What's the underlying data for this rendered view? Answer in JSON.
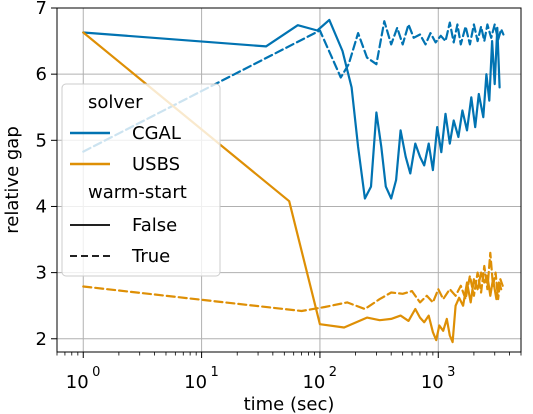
{
  "chart_data": {
    "type": "line",
    "xscale": "log",
    "xlabel": "time (sec)",
    "ylabel": "relative gap",
    "xlim": [
      0.6,
      5000
    ],
    "ylim": [
      1.8,
      7.0
    ],
    "grid": true,
    "x_ticks": [
      {
        "value": 1,
        "base": "10",
        "exp": "0"
      },
      {
        "value": 10,
        "base": "10",
        "exp": "1"
      },
      {
        "value": 100,
        "base": "10",
        "exp": "2"
      },
      {
        "value": 1000,
        "base": "10",
        "exp": "3"
      }
    ],
    "y_ticks": [
      2,
      3,
      4,
      5,
      6,
      7
    ],
    "legend": {
      "position": "center-left",
      "hue_title": "solver",
      "style_title": "warm-start",
      "hue_entries": [
        "CGAL",
        "USBS"
      ],
      "style_entries": [
        "False",
        "True"
      ]
    },
    "colors": {
      "CGAL": "#0173b2",
      "USBS": "#de8f05"
    },
    "series": [
      {
        "solver": "CGAL",
        "warm_start": "False",
        "points": [
          [
            1,
            6.63
          ],
          [
            35,
            6.42
          ],
          [
            65,
            6.74
          ],
          [
            95,
            6.66
          ],
          [
            120,
            6.82
          ],
          [
            155,
            6.35
          ],
          [
            185,
            5.8
          ],
          [
            210,
            4.9
          ],
          [
            240,
            4.12
          ],
          [
            270,
            4.3
          ],
          [
            300,
            5.42
          ],
          [
            330,
            4.9
          ],
          [
            360,
            4.3
          ],
          [
            400,
            4.12
          ],
          [
            440,
            4.4
          ],
          [
            480,
            5.15
          ],
          [
            530,
            4.75
          ],
          [
            580,
            4.5
          ],
          [
            640,
            4.95
          ],
          [
            700,
            4.75
          ],
          [
            760,
            4.62
          ],
          [
            830,
            4.95
          ],
          [
            900,
            4.55
          ],
          [
            980,
            5.2
          ],
          [
            1060,
            4.82
          ],
          [
            1150,
            5.4
          ],
          [
            1250,
            4.95
          ],
          [
            1350,
            5.3
          ],
          [
            1480,
            5.05
          ],
          [
            1600,
            5.45
          ],
          [
            1750,
            5.15
          ],
          [
            1900,
            5.65
          ],
          [
            2050,
            5.2
          ],
          [
            2200,
            5.7
          ],
          [
            2400,
            5.35
          ],
          [
            2550,
            6.0
          ],
          [
            2700,
            5.6
          ],
          [
            2850,
            6.5
          ],
          [
            3000,
            5.85
          ],
          [
            3150,
            6.7
          ],
          [
            3300,
            5.8
          ]
        ]
      },
      {
        "solver": "CGAL",
        "warm_start": "True",
        "points": [
          [
            1,
            4.83
          ],
          [
            100,
            6.66
          ],
          [
            150,
            5.95
          ],
          [
            175,
            6.15
          ],
          [
            210,
            6.62
          ],
          [
            250,
            6.25
          ],
          [
            300,
            6.15
          ],
          [
            350,
            6.8
          ],
          [
            400,
            6.45
          ],
          [
            450,
            6.7
          ],
          [
            500,
            6.45
          ],
          [
            560,
            6.75
          ],
          [
            620,
            6.55
          ],
          [
            700,
            6.6
          ],
          [
            780,
            6.45
          ],
          [
            860,
            6.62
          ],
          [
            950,
            6.48
          ],
          [
            1050,
            6.58
          ],
          [
            1150,
            6.5
          ],
          [
            1250,
            6.78
          ],
          [
            1350,
            6.48
          ],
          [
            1450,
            6.75
          ],
          [
            1550,
            6.45
          ],
          [
            1700,
            6.72
          ],
          [
            1850,
            6.45
          ],
          [
            2000,
            6.75
          ],
          [
            2150,
            6.5
          ],
          [
            2300,
            6.72
          ],
          [
            2450,
            6.5
          ],
          [
            2600,
            6.75
          ],
          [
            2800,
            6.55
          ],
          [
            3000,
            6.75
          ],
          [
            3200,
            6.52
          ],
          [
            3400,
            6.68
          ],
          [
            3550,
            6.6
          ]
        ]
      },
      {
        "solver": "USBS",
        "warm_start": "False",
        "points": [
          [
            1,
            6.63
          ],
          [
            55,
            4.08
          ],
          [
            100,
            2.22
          ],
          [
            160,
            2.17
          ],
          [
            250,
            2.32
          ],
          [
            320,
            2.28
          ],
          [
            400,
            2.3
          ],
          [
            480,
            2.35
          ],
          [
            560,
            2.27
          ],
          [
            640,
            2.45
          ],
          [
            700,
            2.32
          ],
          [
            760,
            2.25
          ],
          [
            830,
            2.35
          ],
          [
            900,
            2.1
          ],
          [
            960,
            1.98
          ],
          [
            1020,
            2.2
          ],
          [
            1100,
            2.12
          ],
          [
            1180,
            2.3
          ],
          [
            1250,
            2.05
          ],
          [
            1320,
            1.95
          ],
          [
            1400,
            2.5
          ],
          [
            1500,
            2.62
          ],
          [
            1620,
            2.5
          ],
          [
            1750,
            2.85
          ],
          [
            1880,
            2.55
          ],
          [
            2000,
            2.9
          ],
          [
            2150,
            2.75
          ],
          [
            2300,
            3.0
          ],
          [
            2450,
            2.85
          ],
          [
            2600,
            2.95
          ],
          [
            2750,
            2.65
          ],
          [
            2900,
            2.9
          ],
          [
            3100,
            2.6
          ],
          [
            3250,
            2.85
          ],
          [
            3400,
            2.75
          ]
        ]
      },
      {
        "solver": "USBS",
        "warm_start": "True",
        "points": [
          [
            1,
            2.79
          ],
          [
            70,
            2.42
          ],
          [
            110,
            2.48
          ],
          [
            170,
            2.55
          ],
          [
            240,
            2.45
          ],
          [
            320,
            2.6
          ],
          [
            400,
            2.7
          ],
          [
            500,
            2.68
          ],
          [
            600,
            2.72
          ],
          [
            700,
            2.55
          ],
          [
            800,
            2.65
          ],
          [
            900,
            2.55
          ],
          [
            1000,
            2.75
          ],
          [
            1100,
            2.6
          ],
          [
            1250,
            2.75
          ],
          [
            1400,
            2.65
          ],
          [
            1550,
            2.8
          ],
          [
            1700,
            2.6
          ],
          [
            1850,
            2.95
          ],
          [
            2000,
            2.65
          ],
          [
            2150,
            3.0
          ],
          [
            2300,
            2.7
          ],
          [
            2450,
            3.1
          ],
          [
            2600,
            2.75
          ],
          [
            2750,
            3.3
          ],
          [
            2900,
            2.8
          ],
          [
            3050,
            3.0
          ],
          [
            3200,
            2.6
          ],
          [
            3350,
            2.9
          ],
          [
            3500,
            2.8
          ]
        ]
      }
    ]
  }
}
